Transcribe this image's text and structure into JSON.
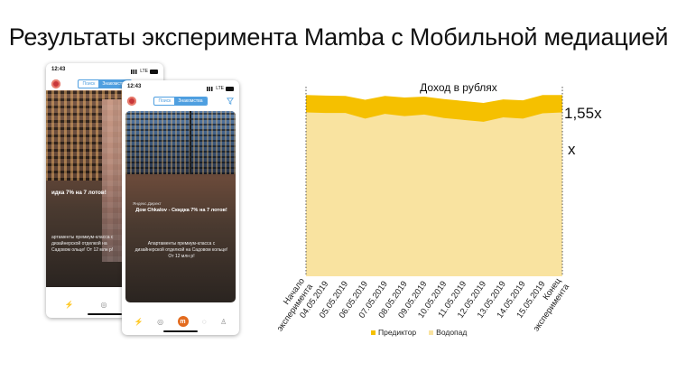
{
  "slide": {
    "title": "Результаты эксперимента Mamba с Мобильной медиацией"
  },
  "phones": [
    {
      "id": "back",
      "time": "12:43",
      "network": "LTE",
      "segments": [
        "Поиск",
        "Знакомства"
      ],
      "active_segment": 1,
      "headline": "% на 7 лотов!",
      "headline_prefix": "идка 7",
      "description": "артаменты премиум-класса с дизайнерской отделкой на Садовом ольце! От 12 млн р!"
    },
    {
      "id": "front",
      "time": "12:43",
      "network": "LTE",
      "segments": [
        "Поиск",
        "Знакомства"
      ],
      "active_segment": 1,
      "sponsor": "Яндекс.Директ",
      "headline": "Дом Chkalov - Скидка 7% на 7 лотов!",
      "description": "Апартаменты премиум-класса с дизайнерской отделкой на Садовом кольце! От 12 млн р!",
      "tab_center": "m"
    }
  ],
  "icons": {
    "status_signal": "signal-bars-icon",
    "status_battery": "battery-icon",
    "filter": "filter-icon",
    "heart": "heart-icon",
    "tabs": [
      "flash-icon",
      "compass-icon",
      "m-logo-icon",
      "chat-icon",
      "profile-icon"
    ]
  },
  "colors": {
    "predictor": "#f5c000",
    "waterfall": "#f9e3a0",
    "accent_blue": "#4f9fe0",
    "mamba_orange": "#e36b1e"
  },
  "chart_data": {
    "type": "area",
    "title": "Доход в рублях",
    "categories": [
      "Начало эксперимента",
      "04.05.2019",
      "05.05.2019",
      "06.05.2019",
      "07.05.2019",
      "08.05.2019",
      "09.05.2019",
      "10.05.2019",
      "11.05.2019",
      "12.05.2019",
      "13.05.2019",
      "14.05.2019",
      "15.05.2019",
      "Конец эксперимента"
    ],
    "series": [
      {
        "name": "Предиктор",
        "values": [
          1.55,
          1.53,
          1.52,
          1.4,
          1.52,
          1.47,
          1.5,
          1.42,
          1.36,
          1.3,
          1.41,
          1.38,
          1.55,
          1.55
        ]
      },
      {
        "name": "Водопад",
        "values": [
          1.0,
          0.98,
          0.98,
          0.8,
          0.95,
          0.88,
          0.93,
          0.82,
          0.76,
          0.7,
          0.84,
          0.8,
          0.97,
          1.0
        ]
      }
    ],
    "stacked": false,
    "level_labels": [
      "1,55x",
      "x"
    ],
    "ylim": [
      -4.2,
      1.7
    ],
    "legend_position": "bottom",
    "grid": false,
    "boundary_markers": "dotted vertical lines at start and end"
  }
}
